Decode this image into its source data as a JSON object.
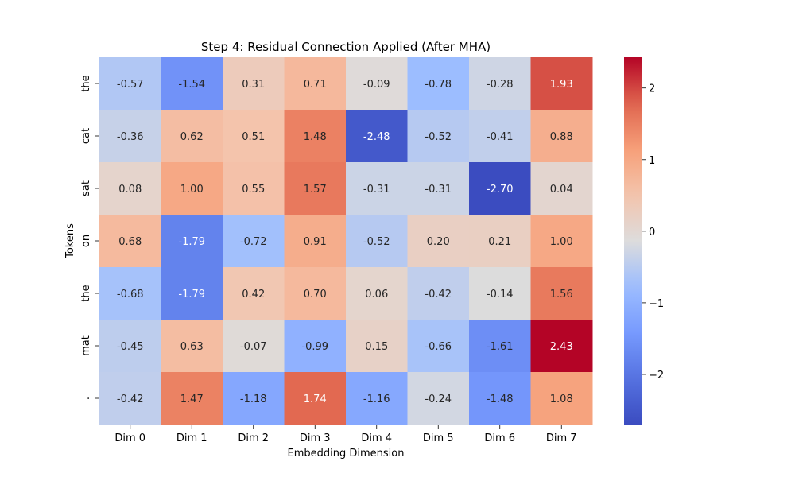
{
  "chart_data": {
    "type": "heatmap",
    "title": "Step 4: Residual Connection Applied (After MHA)",
    "xlabel": "Embedding Dimension",
    "ylabel": "Tokens",
    "x_categories": [
      "Dim 0",
      "Dim 1",
      "Dim 2",
      "Dim 3",
      "Dim 4",
      "Dim 5",
      "Dim 6",
      "Dim 7"
    ],
    "y_categories": [
      "the",
      "cat",
      "sat",
      "on",
      "the",
      "mat",
      "."
    ],
    "values": [
      [
        -0.57,
        -1.54,
        0.31,
        0.71,
        -0.09,
        -0.78,
        -0.28,
        1.93
      ],
      [
        -0.36,
        0.62,
        0.51,
        1.48,
        -2.48,
        -0.52,
        -0.41,
        0.88
      ],
      [
        0.08,
        1.0,
        0.55,
        1.57,
        -0.31,
        -0.31,
        -2.7,
        0.04
      ],
      [
        0.68,
        -1.79,
        -0.72,
        0.91,
        -0.52,
        0.2,
        0.21,
        1.0
      ],
      [
        -0.68,
        -1.79,
        0.42,
        0.7,
        0.06,
        -0.42,
        -0.14,
        1.56
      ],
      [
        -0.45,
        0.63,
        -0.07,
        -0.99,
        0.15,
        -0.66,
        -1.61,
        2.43
      ],
      [
        -0.42,
        1.47,
        -1.18,
        1.74,
        -1.16,
        -0.24,
        -1.48,
        1.08
      ]
    ],
    "annotation_format": "0.00",
    "colormap": "coolwarm",
    "color_range": [
      -2.7,
      2.43
    ],
    "colorbar_ticks": [
      -2,
      -1,
      0,
      1,
      2
    ],
    "colorbar_tick_labels": [
      "−2",
      "−1",
      "0",
      "1",
      "2"
    ]
  }
}
